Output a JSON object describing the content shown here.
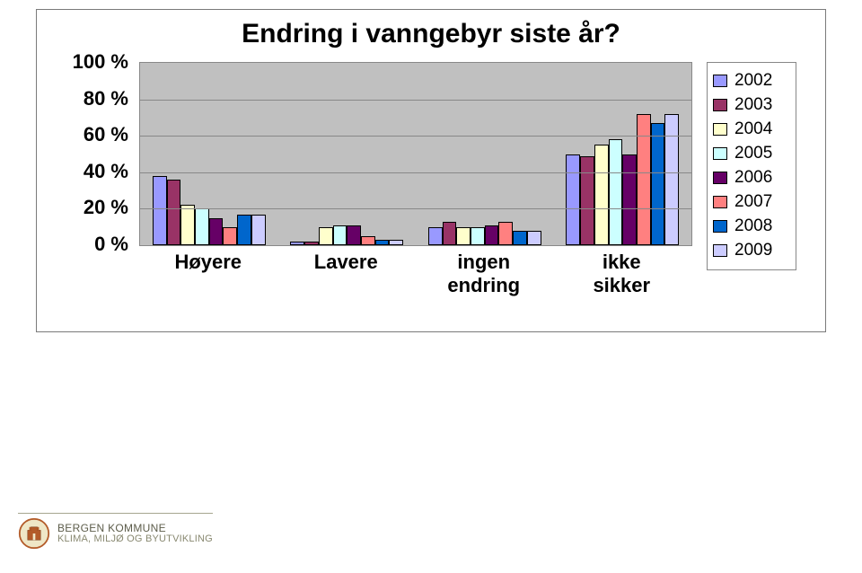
{
  "chart": {
    "title": "Endring i vanngebyr siste år?",
    "type": "grouped-bar",
    "y": {
      "min": 0,
      "max": 100,
      "step": 20,
      "suffix": " %"
    },
    "categories": [
      "Høyere",
      "Lavere",
      "ingen\nendring",
      "ikke\nsikker"
    ],
    "series": [
      {
        "name": "2002",
        "color": "#9999ff"
      },
      {
        "name": "2003",
        "color": "#993366"
      },
      {
        "name": "2004",
        "color": "#ffffcc"
      },
      {
        "name": "2005",
        "color": "#ccffff"
      },
      {
        "name": "2006",
        "color": "#660066"
      },
      {
        "name": "2007",
        "color": "#ff8080"
      },
      {
        "name": "2008",
        "color": "#0066cc"
      },
      {
        "name": "2009",
        "color": "#ccccff"
      }
    ],
    "data": {
      "Høyere": [
        38,
        36,
        22,
        20,
        15,
        10,
        17,
        17
      ],
      "Lavere": [
        2,
        2,
        10,
        11,
        11,
        5,
        3,
        3
      ],
      "ingen endring": [
        10,
        13,
        10,
        10,
        11,
        13,
        8,
        8
      ],
      "ikke sikker": [
        50,
        49,
        55,
        58,
        50,
        72,
        67,
        72
      ]
    },
    "plot_bg": "#c0c0c0",
    "grid_color": "#888888",
    "bar_border": "#000000"
  },
  "footer": {
    "org": "BERGEN KOMMUNE",
    "dept": "KLIMA, MILJØ OG BYUTVIKLING"
  }
}
